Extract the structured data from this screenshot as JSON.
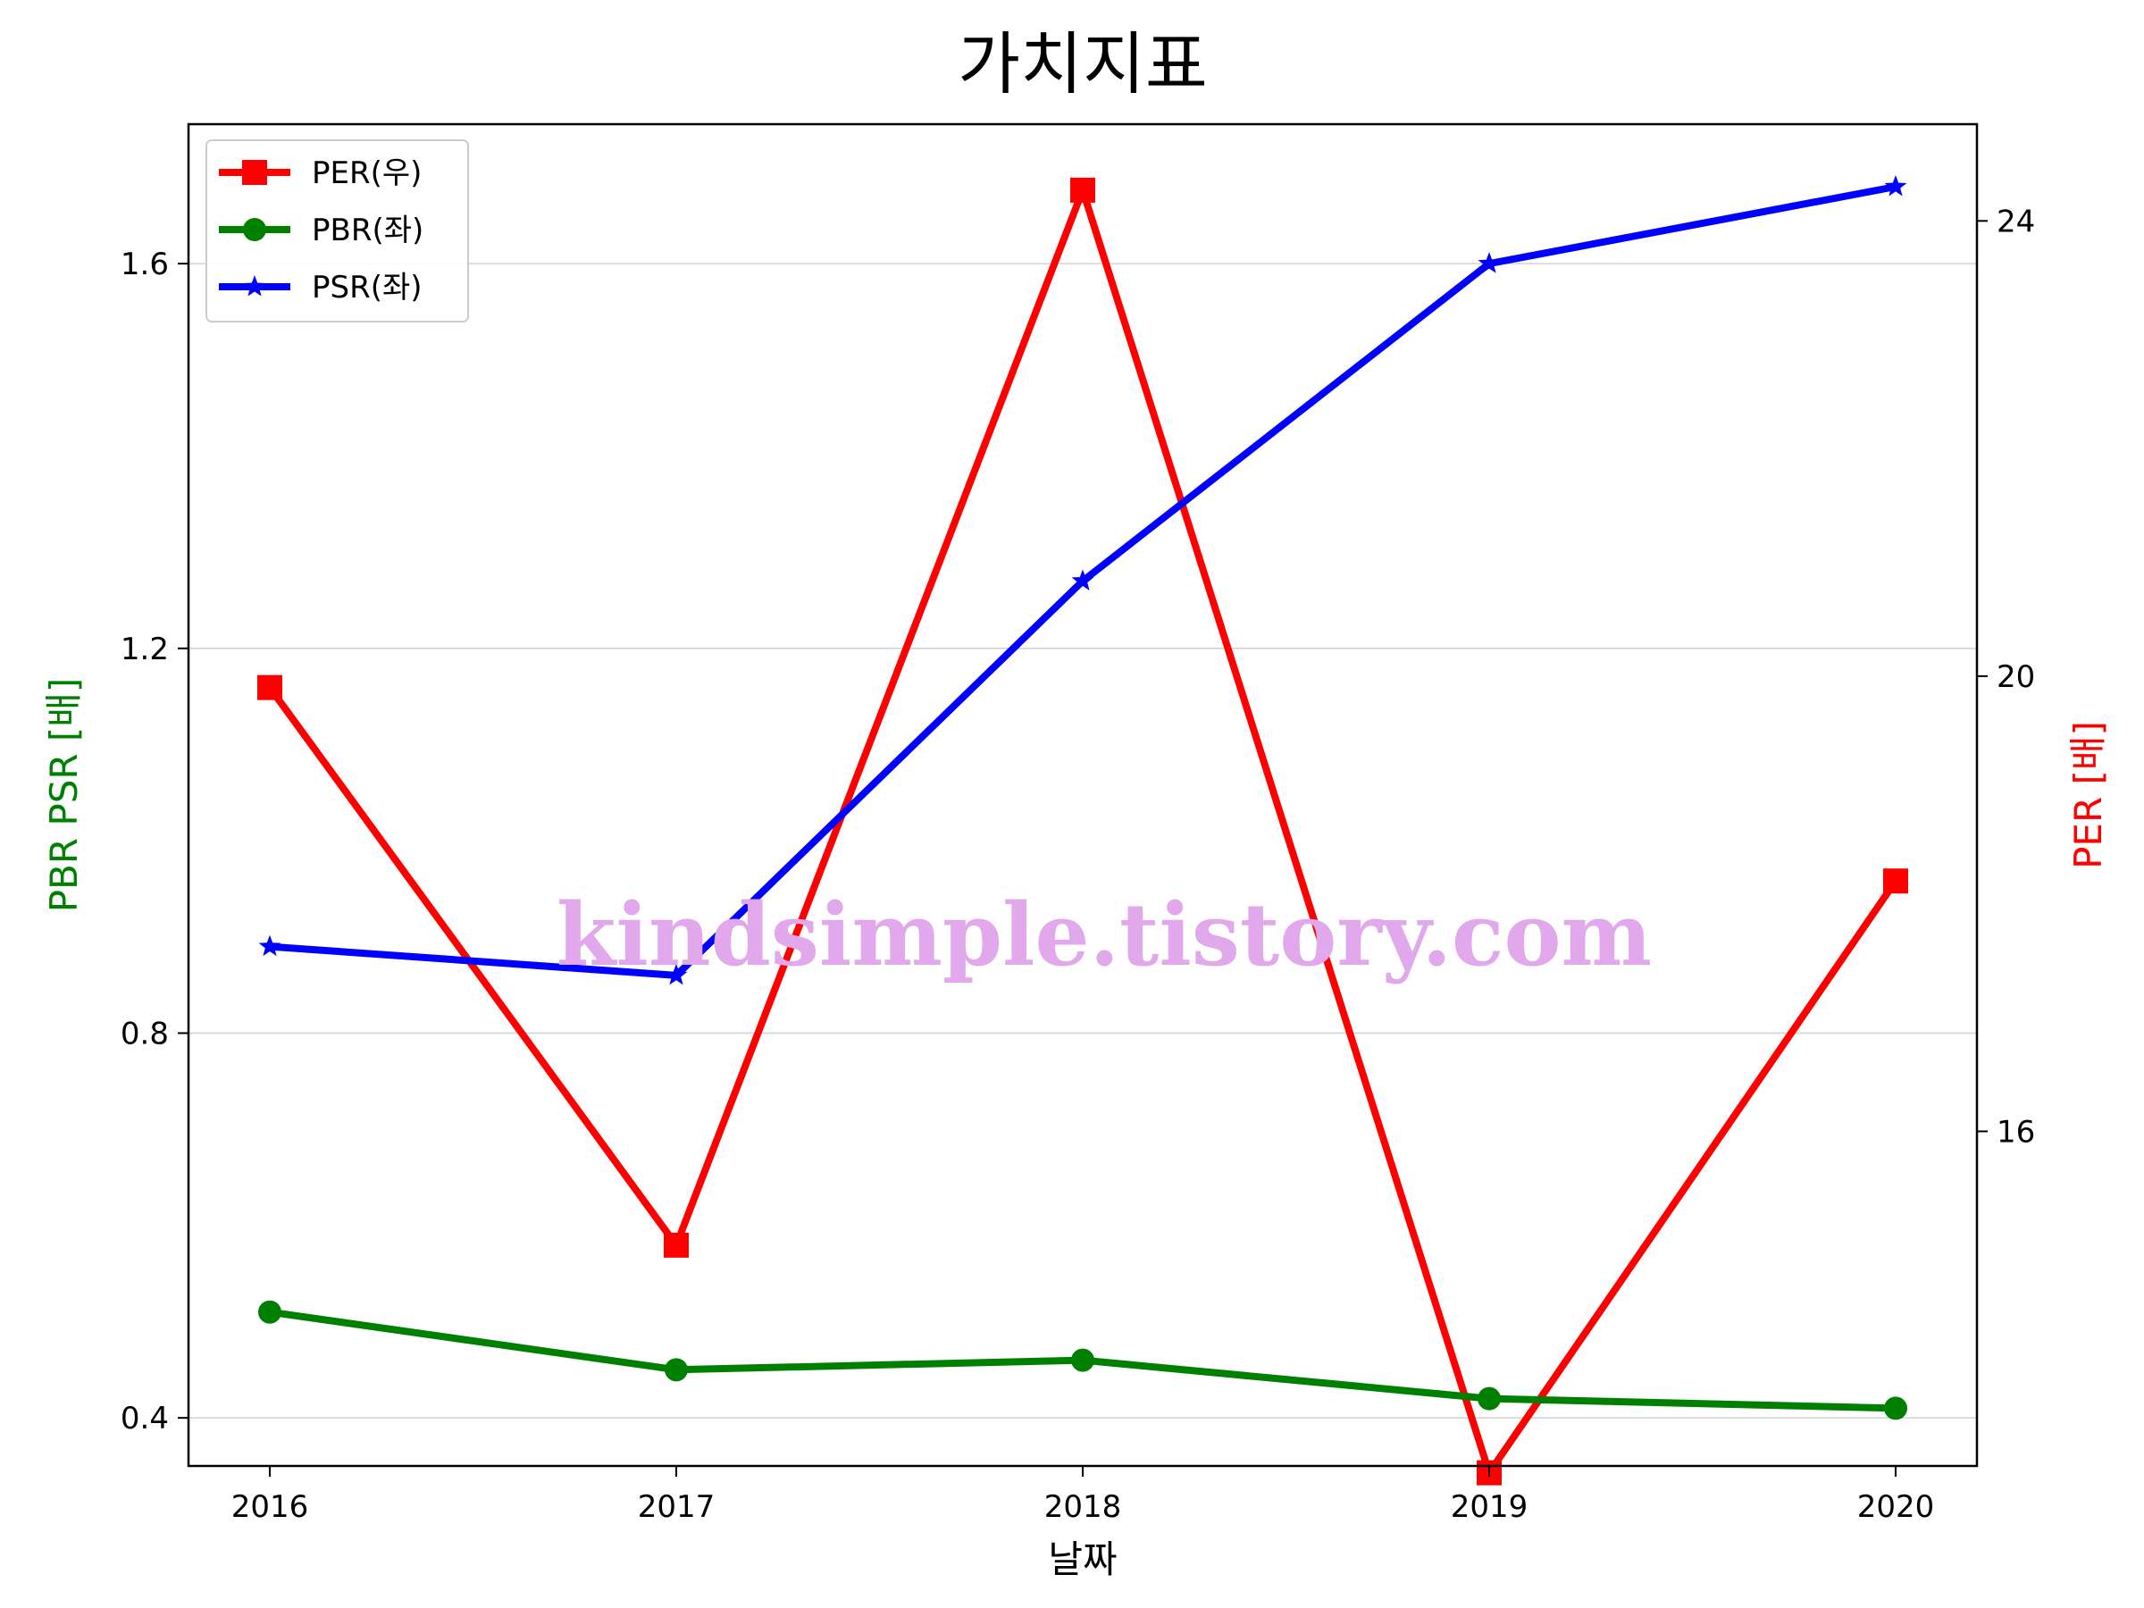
{
  "chart_data": {
    "type": "line",
    "title": "가치지표",
    "xlabel": "날짜",
    "ylabel_left": "PBR PSR [배]",
    "ylabel_right": "PER [배]",
    "ylabel_left_color": "#008000",
    "ylabel_right_color": "#ff0000",
    "categories": [
      "2016",
      "2017",
      "2018",
      "2019",
      "2020"
    ],
    "x": [
      2016,
      2017,
      2018,
      2019,
      2020
    ],
    "xlim": [
      2015.8,
      2020.2
    ],
    "ylim_left": [
      0.35,
      1.745
    ],
    "ylim_right": [
      13.06,
      24.85
    ],
    "yticks_left": [
      0.4,
      0.8,
      1.2,
      1.6
    ],
    "yticks_left_labels": [
      "0.4",
      "0.8",
      "1.2",
      "1.6"
    ],
    "yticks_right": [
      16,
      20,
      24
    ],
    "yticks_right_labels": [
      "16",
      "20",
      "24"
    ],
    "grid": "horizontal (left axis)",
    "legend_position": "upper-left",
    "series": [
      {
        "name": "PER(우)",
        "axis": "right",
        "color": "#ff0000",
        "marker": "square",
        "values": [
          19.9,
          15.0,
          24.27,
          13.0,
          18.2
        ]
      },
      {
        "name": "PBR(좌)",
        "axis": "left",
        "color": "#008000",
        "marker": "circle",
        "values": [
          0.51,
          0.45,
          0.46,
          0.42,
          0.41
        ]
      },
      {
        "name": "PSR(좌)",
        "axis": "left",
        "color": "#0000ff",
        "marker": "star",
        "values": [
          0.89,
          0.86,
          1.27,
          1.6,
          1.68
        ]
      }
    ]
  },
  "watermark": "kindsimple.tistory.com"
}
